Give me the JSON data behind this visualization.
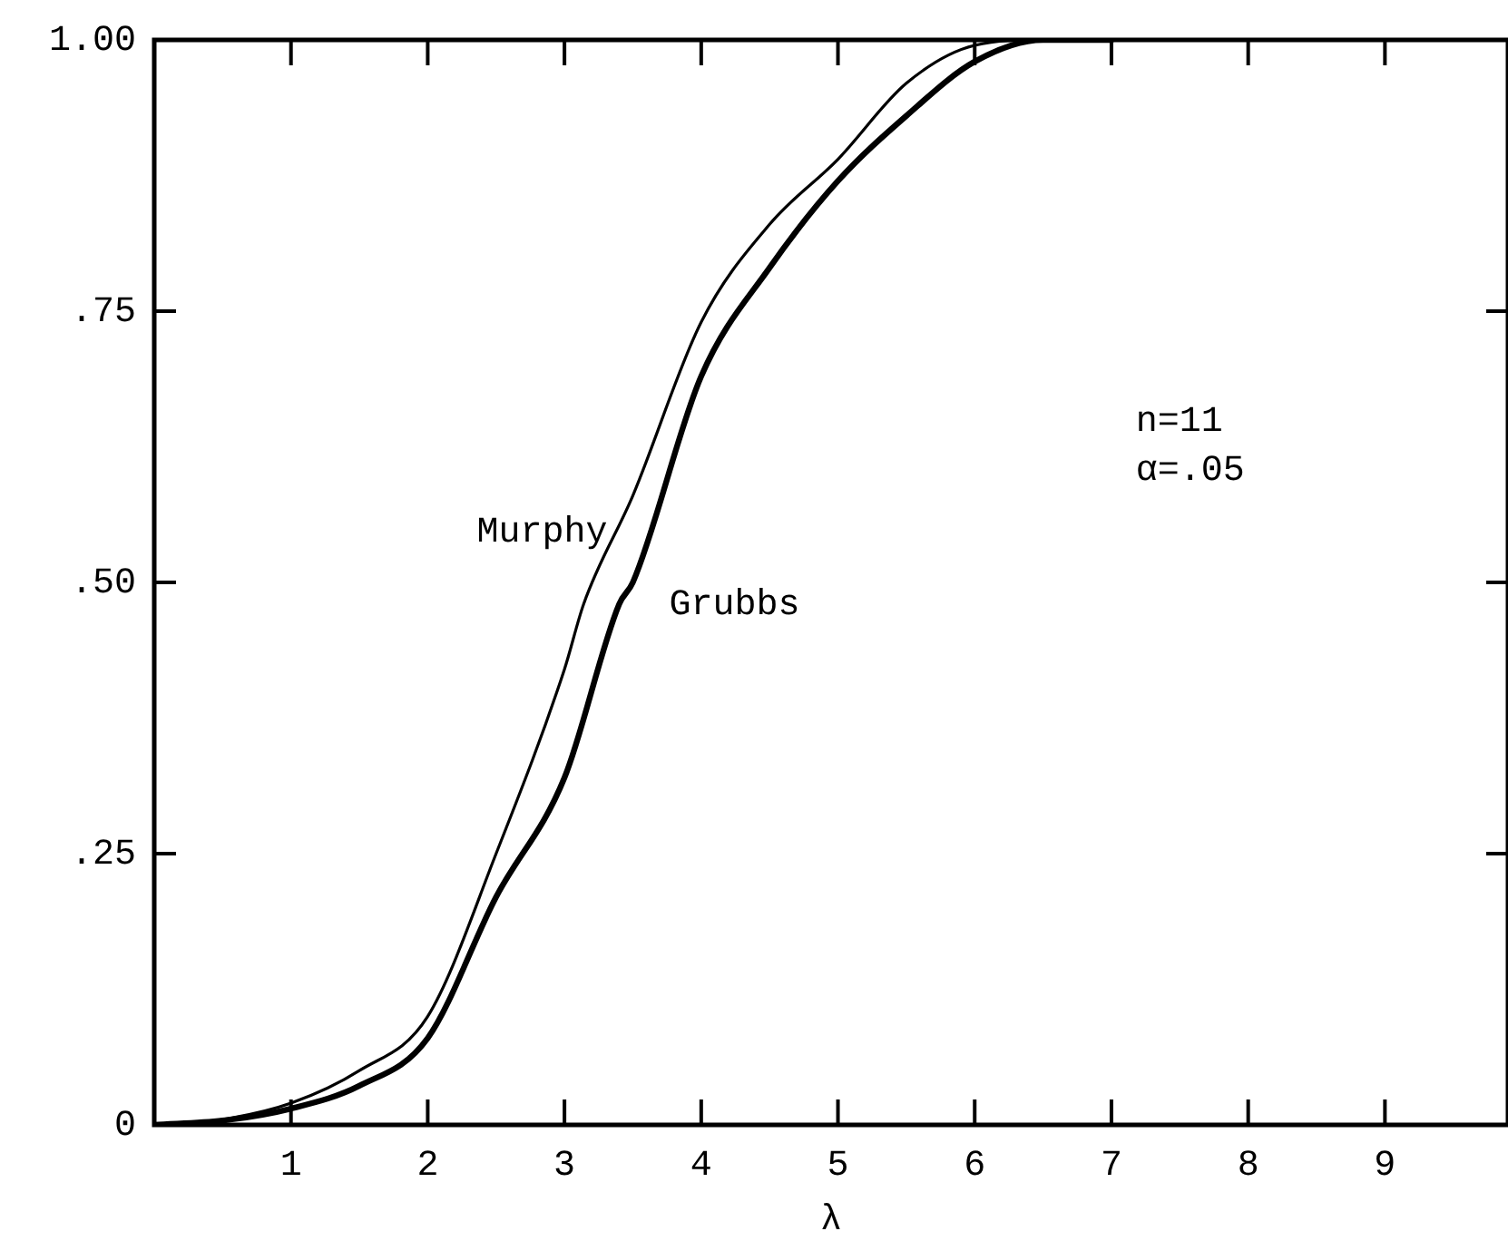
{
  "chart_data": {
    "type": "line",
    "xlabel": "λ",
    "xlim": [
      0,
      9.9
    ],
    "xticks": [
      {
        "value": 0,
        "label": null
      },
      1,
      2,
      3,
      4,
      5,
      6,
      7,
      8,
      9
    ],
    "ylim": [
      0,
      1
    ],
    "yticks": [
      {
        "value": 0,
        "label": "0"
      },
      {
        "value": 0.25,
        "label": ".25"
      },
      {
        "value": 0.5,
        "label": ".50"
      },
      {
        "value": 0.75,
        "label": ".75"
      },
      {
        "value": 1,
        "label": "1.00"
      }
    ],
    "series": [
      {
        "name": "Murphy",
        "color": "#000000",
        "x": [
          0,
          0.5,
          1,
          1.5,
          2,
          2.5,
          3,
          3.14,
          3.5,
          4,
          4.5,
          5,
          5.5,
          6,
          6.5,
          7
        ],
        "values": [
          0,
          0.005,
          0.02,
          0.05,
          0.1,
          0.25,
          0.42,
          0.48,
          0.58,
          0.74,
          0.83,
          0.89,
          0.96,
          0.995,
          1,
          1
        ]
      },
      {
        "name": "Grubbs",
        "color": "#000000",
        "x": [
          0,
          0.5,
          1,
          1.5,
          2,
          2.5,
          3,
          3.4,
          3.5,
          4,
          4.5,
          5,
          5.5,
          6,
          6.5,
          7
        ],
        "values": [
          0,
          0.004,
          0.015,
          0.036,
          0.08,
          0.21,
          0.32,
          0.48,
          0.5,
          0.69,
          0.79,
          0.87,
          0.93,
          0.98,
          1,
          1
        ]
      }
    ],
    "annotations": [
      "n=11",
      "α=.05"
    ],
    "grid": false,
    "legend": false,
    "marker": "none",
    "line_style": "solid"
  }
}
